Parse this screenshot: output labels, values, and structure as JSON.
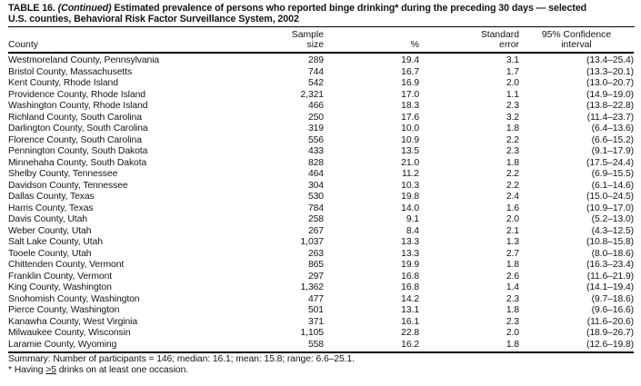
{
  "title": {
    "label": "TABLE 16. ",
    "continued": "(Continued)",
    "rest_line1": " Estimated prevalence of persons who reported binge drinking* during the preceding 30 days — selected",
    "line2": "U.S. counties, Behavioral Risk Factor Surveillance System, 2002"
  },
  "table": {
    "column_keys": [
      "county",
      "sample-size",
      "percent",
      "standard-error",
      "confidence-interval"
    ],
    "columns": [
      "County",
      "Sample\nsize",
      "%",
      "Standard\nerror",
      "95% Confidence\ninterval"
    ],
    "rows": [
      [
        "Westmoreland County, Pennsylvania",
        "289",
        "19.4",
        "3.1",
        "(13.4–25.4)"
      ],
      [
        "Bristol County, Massachusetts",
        "744",
        "16.7",
        "1.7",
        "(13.3–20.1)"
      ],
      [
        "Kent County, Rhode Island",
        "542",
        "16.9",
        "2.0",
        "(13.0–20.7)"
      ],
      [
        "Providence County, Rhode Island",
        "2,321",
        "17.0",
        "1.1",
        "(14.9–19.0)"
      ],
      [
        "Washington County, Rhode Island",
        "466",
        "18.3",
        "2.3",
        "(13.8–22.8)"
      ],
      [
        "Richland County, South Carolina",
        "250",
        "17.6",
        "3.2",
        "(11.4–23.7)"
      ],
      [
        "Darlington County, South Carolina",
        "319",
        "10.0",
        "1.8",
        "(6.4–13.6)"
      ],
      [
        "Florence County, South Carolina",
        "556",
        "10.9",
        "2.2",
        "(6.6–15.2)"
      ],
      [
        "Pennington County, South Dakota",
        "433",
        "13.5",
        "2.3",
        "(9.1–17.9)"
      ],
      [
        "Minnehaha County, South Dakota",
        "828",
        "21.0",
        "1.8",
        "(17.5–24.4)"
      ],
      [
        "Shelby County, Tennessee",
        "464",
        "11.2",
        "2.2",
        "(6.9–15.5)"
      ],
      [
        "Davidson County, Tennessee",
        "304",
        "10.3",
        "2.2",
        "(6.1–14.6)"
      ],
      [
        "Dallas County, Texas",
        "530",
        "19.8",
        "2.4",
        "(15.0–24.5)"
      ],
      [
        "Harris County, Texas",
        "784",
        "14.0",
        "1.6",
        "(10.9–17.0)"
      ],
      [
        "Davis County, Utah",
        "258",
        "9.1",
        "2.0",
        "(5.2–13.0)"
      ],
      [
        "Weber County, Utah",
        "267",
        "8.4",
        "2.1",
        "(4.3–12.5)"
      ],
      [
        "Salt Lake County, Utah",
        "1,037",
        "13.3",
        "1.3",
        "(10.8–15.8)"
      ],
      [
        "Tooele County, Utah",
        "263",
        "13.3",
        "2.7",
        "(8.0–18.6)"
      ],
      [
        "Chittenden County, Vermont",
        "865",
        "19.9",
        "1.8",
        "(16.3–23.4)"
      ],
      [
        "Franklin County, Vermont",
        "297",
        "16.8",
        "2.6",
        "(11.6–21.9)"
      ],
      [
        "King County, Washington",
        "1,362",
        "16.8",
        "1.4",
        "(14.1–19.4)"
      ],
      [
        "Snohomish County, Washington",
        "477",
        "14.2",
        "2.3",
        "(9.7–18.6)"
      ],
      [
        "Pierce County, Washington",
        "501",
        "13.1",
        "1.8",
        "(9.6–16.6)"
      ],
      [
        "Kanawha County, West Virginia",
        "371",
        "16.1",
        "2.3",
        "(11.6–20.6)"
      ],
      [
        "Milwaukee County, Wisconsin",
        "1,105",
        "22.8",
        "2.0",
        "(18.9–26.7)"
      ],
      [
        "Laramie County, Wyoming",
        "558",
        "16.2",
        "1.8",
        "(12.6–19.8)"
      ]
    ]
  },
  "footer": {
    "summary": "Summary: Number of participants = 146; median: 16.1; mean: 15.8; range: 6.6–25.1.",
    "footnote_prefix": "* Having ",
    "footnote_underlined": ">5",
    "footnote_suffix": " drinks on at least one occasion."
  }
}
